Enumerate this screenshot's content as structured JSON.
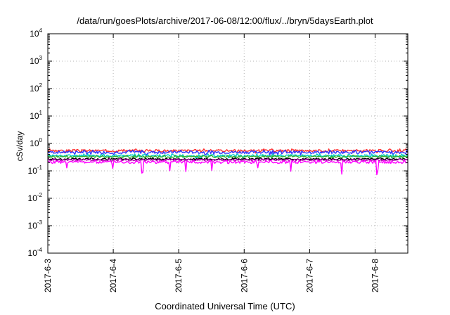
{
  "chart_data": {
    "type": "line",
    "title": "/data/run/goesPlots/archive/2017-06-08/12:00/flux/../bryn/5daysEarth.plot",
    "xlabel": "Coordinated Universal Time (UTC)",
    "ylabel": "cSv/day",
    "yscale": "log",
    "ylim": [
      0.0001,
      10000
    ],
    "xlim": [
      "2017-06-03",
      "2017-06-08 12:00"
    ],
    "x_ticks": [
      "2017-6-3",
      "2017-6-4",
      "2017-6-5",
      "2017-6-6",
      "2017-6-7",
      "2017-6-8"
    ],
    "y_ticks": [
      {
        "base": "10",
        "exp": "4"
      },
      {
        "base": "10",
        "exp": "3"
      },
      {
        "base": "10",
        "exp": "2"
      },
      {
        "base": "10",
        "exp": "1"
      },
      {
        "base": "10",
        "exp": "0"
      },
      {
        "base": "10",
        "exp": "-1"
      },
      {
        "base": "10",
        "exp": "-2"
      },
      {
        "base": "10",
        "exp": "-3"
      },
      {
        "base": "10",
        "exp": "-4"
      }
    ],
    "grid": true,
    "series": [
      {
        "color": "#ff3030",
        "level": 0.55,
        "jitter": 0.09,
        "dip": 0.1,
        "seed": 3
      },
      {
        "color": "#3030ff",
        "level": 0.48,
        "jitter": 0.09,
        "dip": 0.12,
        "seed": 7
      },
      {
        "color": "#00c8c8",
        "level": 0.36,
        "jitter": 0.06,
        "dip": 0.1,
        "seed": 11
      },
      {
        "color": "#30b030",
        "level": 0.33,
        "jitter": 0.04,
        "dip": 0.06,
        "seed": 13
      },
      {
        "color": "#000000",
        "level": 0.27,
        "jitter": 0.03,
        "dip": 0.05,
        "seed": 17
      },
      {
        "color": "#b000b0",
        "level": 0.25,
        "jitter": 0.03,
        "dip": 0.05,
        "seed": 19
      },
      {
        "color": "#ff00ff",
        "level": 0.21,
        "jitter": 0.04,
        "dip": 0.35,
        "seed": 23
      }
    ]
  }
}
